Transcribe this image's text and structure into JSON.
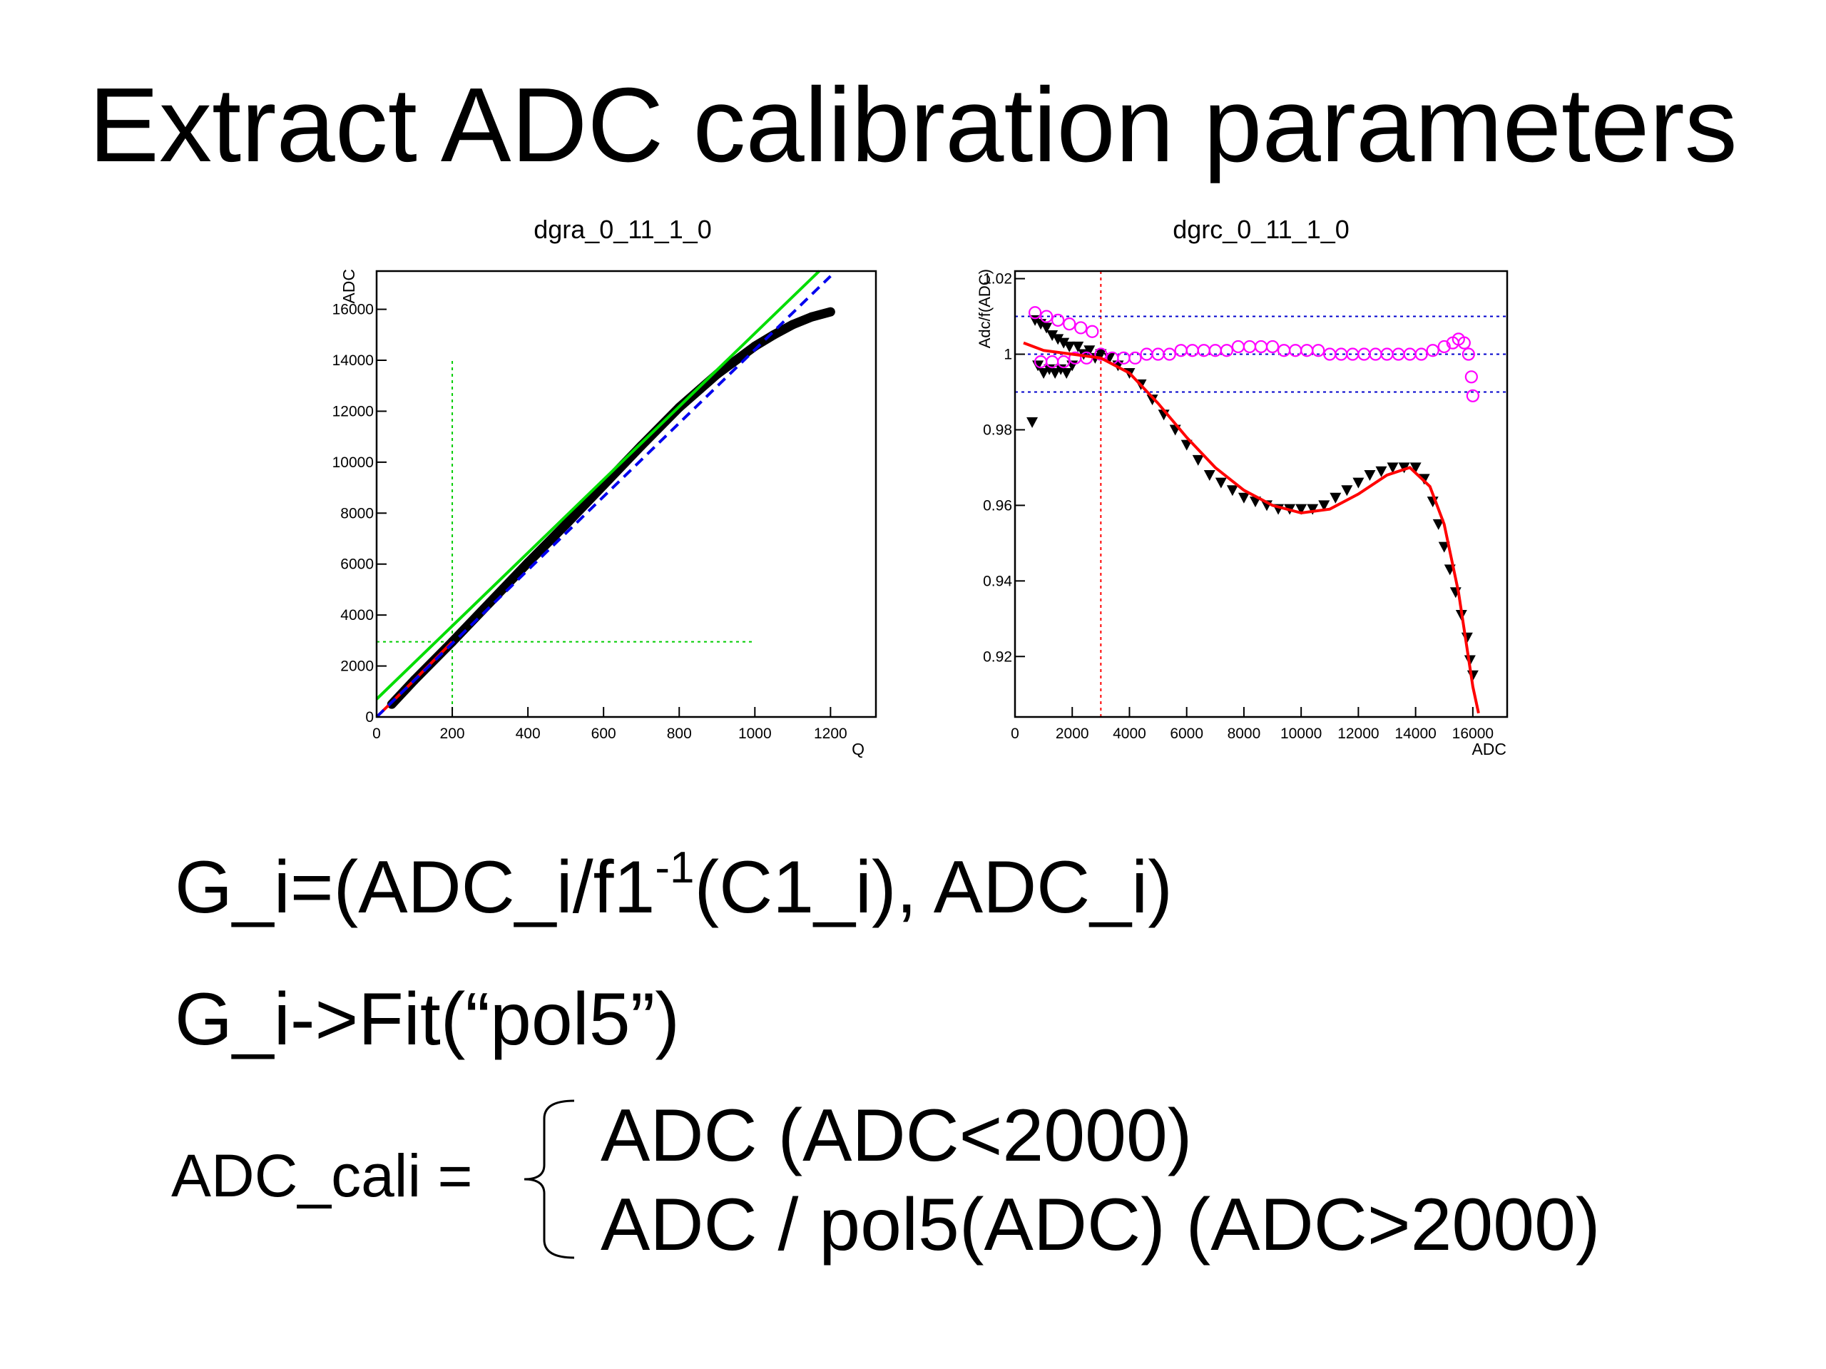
{
  "title": "Extract ADC calibration parameters",
  "charts": [
    {
      "title": "dgra_0_11_1_0",
      "xlabel": "Q",
      "ylabel": "ADC",
      "xticks": [
        "0",
        "200",
        "400",
        "600",
        "800",
        "1000",
        "1200"
      ],
      "yticks": [
        "0",
        "2000",
        "4000",
        "6000",
        "8000",
        "10000",
        "12000",
        "14000",
        "16000"
      ]
    },
    {
      "title": "dgrc_0_11_1_0",
      "xlabel": "ADC",
      "ylabel": "Adc/f(ADC)",
      "xticks": [
        "0",
        "2000",
        "4000",
        "6000",
        "8000",
        "10000",
        "12000",
        "14000",
        "16000"
      ],
      "yticks": [
        "0.92",
        "0.94",
        "0.96",
        "0.98",
        "1",
        "1.02"
      ]
    }
  ],
  "chart_data": [
    {
      "type": "line",
      "title": "dgra_0_11_1_0",
      "xlabel": "Q",
      "ylabel": "ADC",
      "xlim": [
        0,
        1320
      ],
      "ylim": [
        0,
        17500
      ],
      "series": [
        {
          "color": "#000000",
          "marker": "points",
          "x": [
            40,
            100,
            200,
            300,
            400,
            500,
            600,
            700,
            800,
            900,
            1000,
            1050,
            1100,
            1150,
            1200
          ],
          "y": [
            500,
            1450,
            2950,
            4500,
            6050,
            7550,
            9100,
            10650,
            12150,
            13450,
            14550,
            15000,
            15400,
            15700,
            15900
          ]
        },
        {
          "color": "#ff0000",
          "style": "solid",
          "x": [
            0,
            100,
            200
          ],
          "y": [
            0,
            1450,
            2950
          ]
        },
        {
          "color": "#00dd00",
          "style": "solid",
          "x": [
            0,
            1170
          ],
          "y": [
            700,
            17500
          ]
        },
        {
          "color": "#0000ee",
          "style": "dashed",
          "x": [
            0,
            1200
          ],
          "y": [
            0,
            17300
          ]
        }
      ],
      "annotations": [
        {
          "type": "vline",
          "x": 200,
          "y_range": [
            0,
            14000
          ],
          "color": "#00cc00",
          "style": "dotted"
        },
        {
          "type": "hline",
          "y": 2950,
          "x_range": [
            0,
            1000
          ],
          "color": "#00cc00",
          "style": "dotted"
        }
      ]
    },
    {
      "type": "scatter",
      "title": "dgrc_0_11_1_0",
      "xlabel": "ADC",
      "ylabel": "Adc/f(ADC)",
      "xlim": [
        0,
        17200
      ],
      "ylim": [
        0.904,
        1.022
      ],
      "series": [
        {
          "color": "#000000",
          "marker": "triangle-down",
          "x": [
            600,
            700,
            800,
            900,
            1000,
            1100,
            1200,
            1300,
            1400,
            1500,
            1600,
            1700,
            1800,
            1900,
            2000,
            2200,
            2400,
            2600,
            2800,
            3000,
            3300,
            3600,
            4000,
            4400,
            4800,
            5200,
            5600,
            6000,
            6400,
            6800,
            7200,
            7600,
            8000,
            8400,
            8800,
            9200,
            9600,
            10000,
            10400,
            10800,
            11200,
            11600,
            12000,
            12400,
            12800,
            13200,
            13600,
            14000,
            14300,
            14600,
            14800,
            15000,
            15200,
            15400,
            15600,
            15800,
            15900,
            16000
          ],
          "y": [
            0.982,
            1.009,
            0.997,
            1.008,
            0.995,
            1.007,
            0.996,
            1.005,
            0.995,
            1.004,
            0.996,
            1.003,
            0.995,
            1.002,
            0.997,
            1.002,
            1.0,
            1.001,
            0.999,
            1.0,
            0.999,
            0.997,
            0.995,
            0.992,
            0.988,
            0.984,
            0.98,
            0.976,
            0.972,
            0.968,
            0.966,
            0.964,
            0.962,
            0.961,
            0.96,
            0.959,
            0.959,
            0.959,
            0.959,
            0.96,
            0.962,
            0.964,
            0.966,
            0.968,
            0.969,
            0.97,
            0.97,
            0.97,
            0.967,
            0.961,
            0.955,
            0.949,
            0.943,
            0.937,
            0.931,
            0.925,
            0.919,
            0.915
          ]
        },
        {
          "color": "#ff00ff",
          "marker": "circle-open",
          "x": [
            700,
            900,
            1100,
            1300,
            1500,
            1700,
            1900,
            2100,
            2300,
            2500,
            2700,
            3000,
            3400,
            3800,
            4200,
            4600,
            5000,
            5400,
            5800,
            6200,
            6600,
            7000,
            7400,
            7800,
            8200,
            8600,
            9000,
            9400,
            9800,
            10200,
            10600,
            11000,
            11400,
            11800,
            12200,
            12600,
            13000,
            13400,
            13800,
            14200,
            14600,
            15000,
            15300,
            15500,
            15700,
            15850,
            15950,
            16000
          ],
          "y": [
            1.011,
            0.998,
            1.01,
            0.998,
            1.009,
            0.998,
            1.008,
            0.999,
            1.007,
            0.999,
            1.006,
            1.0,
            0.999,
            0.999,
            0.999,
            1.0,
            1.0,
            1.0,
            1.001,
            1.001,
            1.001,
            1.001,
            1.001,
            1.002,
            1.002,
            1.002,
            1.002,
            1.001,
            1.001,
            1.001,
            1.001,
            1.0,
            1.0,
            1.0,
            1.0,
            1.0,
            1.0,
            1.0,
            1.0,
            1.0,
            1.001,
            1.002,
            1.003,
            1.004,
            1.003,
            1.0,
            0.994,
            0.989
          ]
        },
        {
          "color": "#ff0000",
          "style": "solid",
          "type": "line",
          "x": [
            300,
            1000,
            2000,
            3000,
            4000,
            5000,
            6000,
            7000,
            8000,
            9000,
            10000,
            11000,
            12000,
            13000,
            13800,
            14500,
            15000,
            15500,
            16000,
            16200
          ],
          "y": [
            1.003,
            1.001,
            1.0,
            0.999,
            0.995,
            0.987,
            0.978,
            0.97,
            0.964,
            0.96,
            0.958,
            0.959,
            0.963,
            0.968,
            0.97,
            0.965,
            0.955,
            0.937,
            0.912,
            0.905
          ]
        }
      ],
      "annotations": [
        {
          "type": "vline",
          "x": 3000,
          "color": "#ff0000",
          "style": "dotted"
        },
        {
          "type": "hline",
          "y": 1.01,
          "color": "#0000cc",
          "style": "dotted"
        },
        {
          "type": "hline",
          "y": 1.0,
          "color": "#0000cc",
          "style": "dotted"
        },
        {
          "type": "hline",
          "y": 0.99,
          "color": "#0000cc",
          "style": "dotted"
        }
      ]
    }
  ],
  "equations": {
    "eq1_prefix": "G_i=(ADC_i/f1",
    "eq1_sup": "-1",
    "eq1_suffix": "(C1_i), ADC_i)",
    "eq2": "G_i->Fit(“pol5”)",
    "cali_lhs": "ADC_cali =",
    "case1": "ADC (ADC<2000)",
    "case2": "ADC / pol5(ADC) (ADC>2000)"
  }
}
